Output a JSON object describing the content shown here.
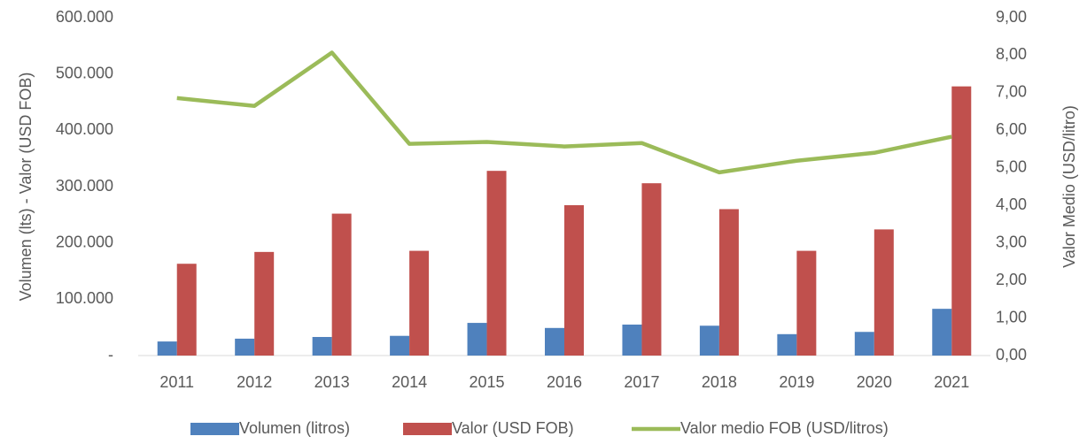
{
  "chart_data": {
    "type": "bar-line",
    "categories": [
      "2011",
      "2012",
      "2013",
      "2014",
      "2015",
      "2016",
      "2017",
      "2018",
      "2019",
      "2020",
      "2021"
    ],
    "series": [
      {
        "name": "Volumen (litros)",
        "color": "#4f81bd",
        "type": "bar",
        "values": [
          25000,
          30000,
          33000,
          35000,
          58000,
          49000,
          55000,
          53000,
          38000,
          42000,
          83000
        ]
      },
      {
        "name": "Valor (USD FOB)",
        "color": "#c0504d",
        "type": "bar",
        "values": [
          163000,
          184000,
          252000,
          186000,
          328000,
          267000,
          306000,
          260000,
          186000,
          224000,
          478000
        ]
      },
      {
        "name": "Valor medio FOB (USD/litros)",
        "color": "#9bbb59",
        "type": "line",
        "axis": "y2",
        "values": [
          6.86,
          6.65,
          8.07,
          5.64,
          5.69,
          5.57,
          5.66,
          4.88,
          5.19,
          5.4,
          5.83
        ]
      }
    ],
    "y_label": "Volumen (lts) - Valor (USD FOB)",
    "y2_label": "Valor Medio (USD/litro)",
    "ylim": [
      0,
      600000
    ],
    "yticks": [
      {
        "value": 0,
        "label": "-"
      },
      {
        "value": 100000,
        "label": "100.000"
      },
      {
        "value": 200000,
        "label": "200.000"
      },
      {
        "value": 300000,
        "label": "300.000"
      },
      {
        "value": 400000,
        "label": "400.000"
      },
      {
        "value": 500000,
        "label": "500.000"
      },
      {
        "value": 600000,
        "label": "600.000"
      }
    ],
    "y2lim": [
      0,
      9
    ],
    "y2ticks": [
      {
        "value": 0,
        "label": "0,00"
      },
      {
        "value": 1,
        "label": "1,00"
      },
      {
        "value": 2,
        "label": "2,00"
      },
      {
        "value": 3,
        "label": "3,00"
      },
      {
        "value": 4,
        "label": "4,00"
      },
      {
        "value": 5,
        "label": "5,00"
      },
      {
        "value": 6,
        "label": "6,00"
      },
      {
        "value": 7,
        "label": "7,00"
      },
      {
        "value": 8,
        "label": "8,00"
      },
      {
        "value": 9,
        "label": "9,00"
      }
    ],
    "legend": "bottom"
  }
}
